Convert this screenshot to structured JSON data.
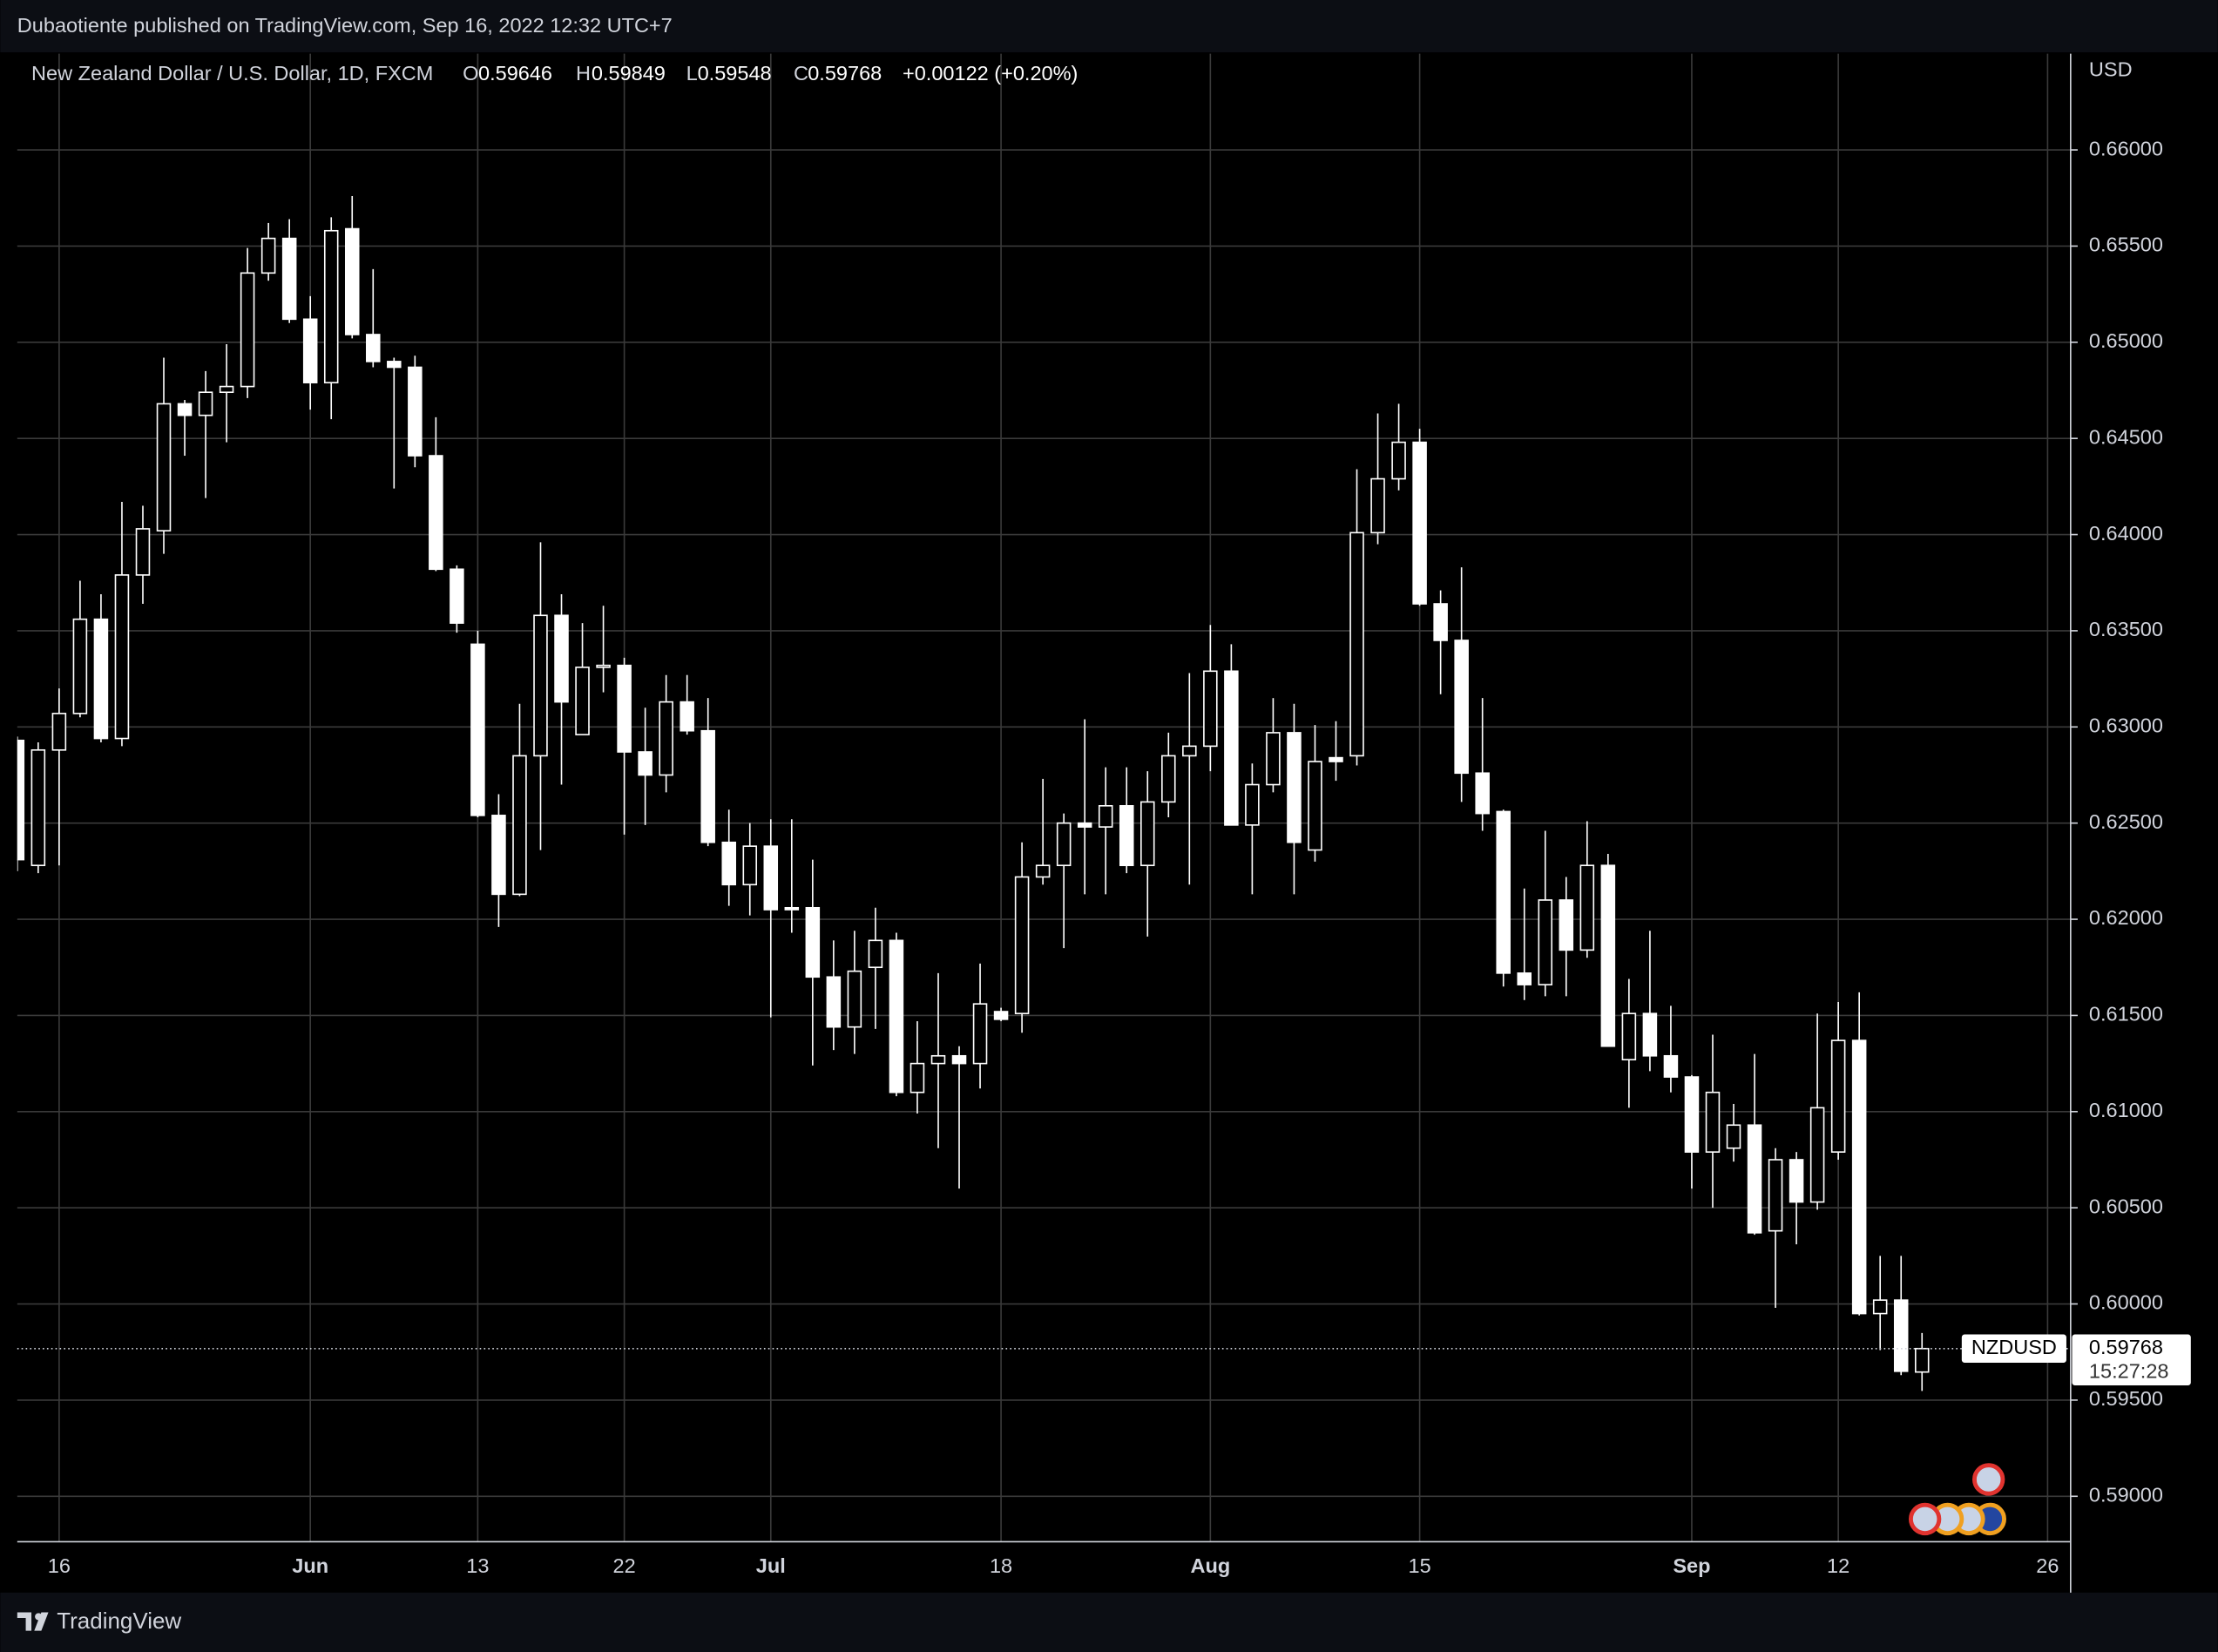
{
  "header": {
    "text": "Dubaotiente published on TradingView.com, Sep 16, 2022 12:32 UTC+7"
  },
  "chart_data": {
    "type": "candlestick",
    "title": "New Zealand Dollar / U.S. Dollar, 1D, FXCM",
    "ohlc_labels": [
      "O",
      "H",
      "L",
      "C"
    ],
    "change_label": "+0.00122 (+0.20%)",
    "currency": "USD",
    "symbol": "NZDUSD",
    "countdown": "15:27:28",
    "open": [
      0.6293,
      0.6228,
      0.6288,
      0.6307,
      0.6356,
      0.6294,
      0.6379,
      0.6402,
      0.6468,
      0.6462,
      0.6474,
      0.6477,
      0.6536,
      0.6554,
      0.6512,
      0.6479,
      0.6559,
      0.6504,
      0.649,
      0.6487,
      0.6441,
      0.6382,
      0.6343,
      0.6254,
      0.6213,
      0.6285,
      0.6358,
      0.6296,
      0.6331,
      0.6332,
      0.6287,
      0.6275,
      0.6313,
      0.6298,
      0.624,
      0.6218,
      0.6238,
      0.6206,
      0.6206,
      0.617,
      0.6144,
      0.6175,
      0.6189,
      0.611,
      0.6125,
      0.6129,
      0.6125,
      0.6152,
      0.6151,
      0.6222,
      0.6228,
      0.625,
      0.6248,
      0.6259,
      0.6228,
      0.6261,
      0.6285,
      0.629,
      0.6329,
      0.6249,
      0.627,
      0.6297,
      0.6236,
      0.6284,
      0.6285,
      0.6401,
      0.6429,
      0.6448,
      0.6364,
      0.6345,
      0.6276,
      0.6256,
      0.6172,
      0.6166,
      0.621,
      0.6184,
      0.6228,
      0.6127,
      0.6151,
      0.6129,
      0.6118,
      0.6079,
      0.6081,
      0.6093,
      0.6038,
      0.6075,
      0.6053,
      0.6079,
      0.6137,
      0.5995,
      0.6002,
      0.59646
    ],
    "high": [
      0.6295,
      0.6292,
      0.632,
      0.6376,
      0.6369,
      0.6417,
      0.6415,
      0.6492,
      0.647,
      0.6485,
      0.6499,
      0.6549,
      0.6562,
      0.6564,
      0.6524,
      0.6565,
      0.6576,
      0.6538,
      0.6492,
      0.6493,
      0.6461,
      0.6384,
      0.635,
      0.6265,
      0.6312,
      0.6396,
      0.6369,
      0.6354,
      0.6363,
      0.6336,
      0.631,
      0.6327,
      0.6327,
      0.6315,
      0.6257,
      0.625,
      0.6252,
      0.6252,
      0.6231,
      0.6189,
      0.6194,
      0.6206,
      0.6193,
      0.6147,
      0.6172,
      0.6134,
      0.6177,
      0.6154,
      0.624,
      0.6273,
      0.6255,
      0.6304,
      0.6279,
      0.6279,
      0.6277,
      0.6297,
      0.6328,
      0.6353,
      0.6343,
      0.6281,
      0.6315,
      0.6312,
      0.6301,
      0.6303,
      0.6434,
      0.6463,
      0.6468,
      0.6455,
      0.6371,
      0.6383,
      0.6315,
      0.6257,
      0.6216,
      0.6246,
      0.6222,
      0.6251,
      0.6234,
      0.6169,
      0.6194,
      0.6155,
      0.6119,
      0.614,
      0.6104,
      0.613,
      0.6081,
      0.6079,
      0.6151,
      0.6157,
      0.6162,
      0.6025,
      0.6025,
      0.59849
    ],
    "low": [
      0.6225,
      0.6224,
      0.6228,
      0.6305,
      0.6292,
      0.629,
      0.6364,
      0.639,
      0.6441,
      0.6419,
      0.6448,
      0.6471,
      0.6532,
      0.651,
      0.6465,
      0.646,
      0.6502,
      0.6487,
      0.6424,
      0.6435,
      0.6381,
      0.6349,
      0.6253,
      0.6196,
      0.6212,
      0.6236,
      0.627,
      0.6296,
      0.6318,
      0.6244,
      0.6249,
      0.6266,
      0.6296,
      0.6238,
      0.6207,
      0.6202,
      0.6149,
      0.6193,
      0.6124,
      0.6132,
      0.613,
      0.6143,
      0.6108,
      0.6099,
      0.6081,
      0.606,
      0.6112,
      0.6147,
      0.6141,
      0.6218,
      0.6185,
      0.6213,
      0.6213,
      0.6224,
      0.6191,
      0.6253,
      0.6218,
      0.6277,
      0.6249,
      0.6213,
      0.6266,
      0.6213,
      0.623,
      0.6272,
      0.628,
      0.6395,
      0.6423,
      0.6363,
      0.6317,
      0.6261,
      0.6246,
      0.6165,
      0.6158,
      0.616,
      0.616,
      0.618,
      0.6134,
      0.6102,
      0.6121,
      0.611,
      0.606,
      0.605,
      0.6074,
      0.6036,
      0.5998,
      0.6031,
      0.6049,
      0.6075,
      0.5994,
      0.5976,
      0.5963,
      0.59548
    ],
    "close": [
      0.6231,
      0.6288,
      0.6307,
      0.6356,
      0.6294,
      0.6379,
      0.6403,
      0.6468,
      0.6462,
      0.6474,
      0.6477,
      0.6536,
      0.6554,
      0.6512,
      0.6479,
      0.6558,
      0.6504,
      0.649,
      0.6487,
      0.6441,
      0.6382,
      0.6354,
      0.6254,
      0.6213,
      0.6285,
      0.6358,
      0.6313,
      0.6331,
      0.6332,
      0.6287,
      0.6275,
      0.6313,
      0.6298,
      0.624,
      0.6218,
      0.6238,
      0.6205,
      0.6205,
      0.617,
      0.6144,
      0.6173,
      0.6189,
      0.611,
      0.6125,
      0.6129,
      0.6125,
      0.6156,
      0.6148,
      0.6222,
      0.6228,
      0.625,
      0.6248,
      0.6259,
      0.6228,
      0.6261,
      0.6285,
      0.629,
      0.6329,
      0.6249,
      0.627,
      0.6297,
      0.624,
      0.6282,
      0.6282,
      0.6401,
      0.6429,
      0.6448,
      0.6364,
      0.6345,
      0.6276,
      0.6255,
      0.6172,
      0.6166,
      0.621,
      0.6184,
      0.6228,
      0.6134,
      0.6151,
      0.6129,
      0.6118,
      0.6079,
      0.611,
      0.6093,
      0.6037,
      0.6075,
      0.6053,
      0.6102,
      0.6137,
      0.5995,
      0.6002,
      0.5965,
      0.59768
    ],
    "up_color": "#000000",
    "down_color": "#ffffff",
    "wick_color": "#ffffff",
    "ylim": [
      0.58764,
      0.665
    ],
    "yticks": [
      {
        "value": 0.59,
        "label": "0.59000"
      },
      {
        "value": 0.595,
        "label": "0.59500"
      },
      {
        "value": 0.6,
        "label": "0.60000"
      },
      {
        "value": 0.605,
        "label": "0.60500"
      },
      {
        "value": 0.61,
        "label": "0.61000"
      },
      {
        "value": 0.615,
        "label": "0.61500"
      },
      {
        "value": 0.62,
        "label": "0.62000"
      },
      {
        "value": 0.625,
        "label": "0.62500"
      },
      {
        "value": 0.63,
        "label": "0.63000"
      },
      {
        "value": 0.635,
        "label": "0.63500"
      },
      {
        "value": 0.64,
        "label": "0.64000"
      },
      {
        "value": 0.645,
        "label": "0.64500"
      },
      {
        "value": 0.65,
        "label": "0.65000"
      },
      {
        "value": 0.655,
        "label": "0.65500"
      },
      {
        "value": 0.66,
        "label": "0.66000"
      }
    ],
    "xlim": [
      0,
      98.1
    ],
    "xticks": [
      {
        "value": 2,
        "label": "16"
      },
      {
        "value": 14,
        "label": "Jun"
      },
      {
        "value": 22,
        "label": "13"
      },
      {
        "value": 29,
        "label": "22"
      },
      {
        "value": 36,
        "label": "Jul"
      },
      {
        "value": 47,
        "label": "18"
      },
      {
        "value": 57,
        "label": "Aug"
      },
      {
        "value": 67,
        "label": "15"
      },
      {
        "value": 80,
        "label": "Sep"
      },
      {
        "value": 87,
        "label": "12"
      },
      {
        "value": 97,
        "label": "26"
      }
    ],
    "grid": true
  },
  "footer": {
    "brand": "TradingView"
  }
}
